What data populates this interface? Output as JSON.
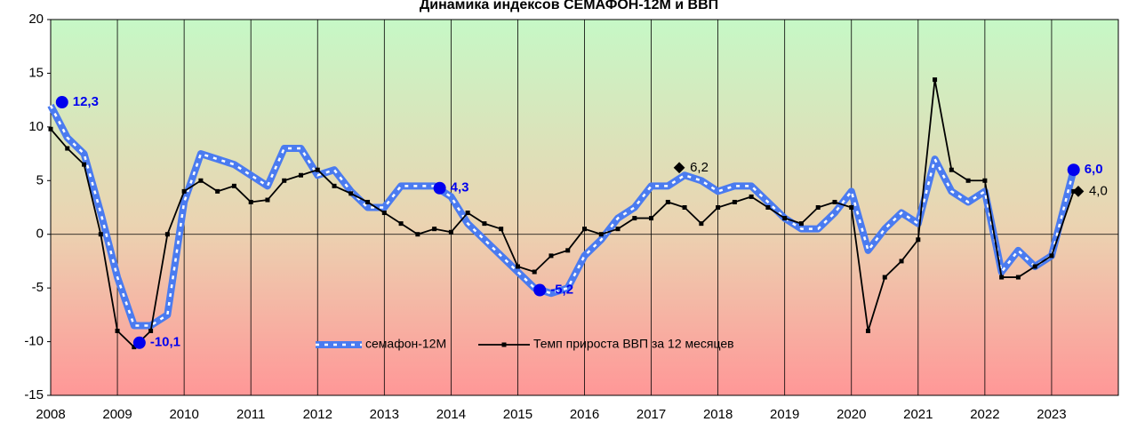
{
  "chart_data": {
    "type": "line",
    "title": "Динамика индексов СЕМАФОН-12М и ВВП",
    "x": [
      2008.0,
      2008.25,
      2008.5,
      2008.75,
      2009.0,
      2009.25,
      2009.5,
      2009.75,
      2010.0,
      2010.25,
      2010.5,
      2010.75,
      2011.0,
      2011.25,
      2011.5,
      2011.75,
      2012.0,
      2012.25,
      2012.5,
      2012.75,
      2013.0,
      2013.25,
      2013.5,
      2013.75,
      2014.0,
      2014.25,
      2014.5,
      2014.75,
      2015.0,
      2015.25,
      2015.5,
      2015.75,
      2016.0,
      2016.25,
      2016.5,
      2016.75,
      2017.0,
      2017.25,
      2017.5,
      2017.75,
      2018.0,
      2018.25,
      2018.5,
      2018.75,
      2019.0,
      2019.25,
      2019.5,
      2019.75,
      2020.0,
      2020.25,
      2020.5,
      2020.75,
      2021.0,
      2021.25,
      2021.5,
      2021.75,
      2022.0,
      2022.25,
      2022.5,
      2022.75,
      2023.0,
      2023.33
    ],
    "series": [
      {
        "name": "семафон-12М",
        "color": "#4a7bf0",
        "style": "dashed-band",
        "values": [
          12,
          9,
          7.5,
          2,
          -4,
          -8.5,
          -8.5,
          -7.5,
          3,
          7.5,
          7,
          6.5,
          5.5,
          4.5,
          8,
          8,
          5.5,
          6,
          4,
          2.5,
          2.5,
          4.5,
          4.5,
          4.5,
          3.5,
          1,
          -0.5,
          -2,
          -3.5,
          -5,
          -5.5,
          -5,
          -2,
          -0.5,
          1.5,
          2.5,
          4.5,
          4.5,
          5.5,
          5,
          4,
          4.5,
          4.5,
          3,
          1.5,
          0.5,
          0.5,
          2,
          4,
          -1.5,
          0.5,
          2,
          1,
          7,
          4,
          3,
          4,
          -3.5,
          -1.5,
          -3,
          -2,
          6
        ]
      },
      {
        "name": "Темп прироста ВВП за 12 месяцев",
        "color": "#000000",
        "style": "line-markers",
        "values": [
          9.8,
          8,
          6.5,
          0,
          -9,
          -10.5,
          -9,
          0,
          4,
          5,
          4,
          4.5,
          3,
          3.2,
          5,
          5.5,
          6,
          4.5,
          3.8,
          3,
          2,
          1,
          0,
          0.5,
          0.2,
          2,
          1,
          0.5,
          -3,
          -3.5,
          -2,
          -1.5,
          0.5,
          0,
          0.5,
          1.5,
          1.5,
          3,
          2.5,
          1,
          2.5,
          3,
          3.5,
          2.5,
          1.5,
          1,
          2.5,
          3,
          2.5,
          -9,
          -4,
          -2.5,
          -0.5,
          14.4,
          6,
          5,
          5,
          -4,
          -4,
          -3,
          -2,
          4
        ]
      }
    ],
    "annotations": [
      {
        "x": 2008.17,
        "y": 12.3,
        "label": "12,3",
        "color": "#0000ee",
        "marker": "circle"
      },
      {
        "x": 2009.33,
        "y": -10.1,
        "label": "-10,1",
        "color": "#0000ee",
        "marker": "circle"
      },
      {
        "x": 2013.83,
        "y": 4.3,
        "label": "4,3",
        "color": "#0000ee",
        "marker": "circle"
      },
      {
        "x": 2015.33,
        "y": -5.2,
        "label": "-5,2",
        "color": "#0000ee",
        "marker": "circle"
      },
      {
        "x": 2023.33,
        "y": 6.0,
        "label": "6,0",
        "color": "#0000ee",
        "marker": "circle"
      },
      {
        "x": 2017.42,
        "y": 6.2,
        "label": "6,2",
        "color": "#000000",
        "marker": "diamond"
      },
      {
        "x": 2023.4,
        "y": 4.0,
        "label": "4,0",
        "color": "#000000",
        "marker": "diamond"
      }
    ],
    "xlim": [
      2008,
      2024
    ],
    "xticks": [
      2008,
      2009,
      2010,
      2011,
      2012,
      2013,
      2014,
      2015,
      2016,
      2017,
      2018,
      2019,
      2020,
      2021,
      2022,
      2023
    ],
    "ylim": [
      -15,
      20
    ],
    "yticks": [
      -15,
      -10,
      -5,
      0,
      5,
      10,
      15,
      20
    ],
    "grid": "x",
    "legend": "bottom-center"
  }
}
